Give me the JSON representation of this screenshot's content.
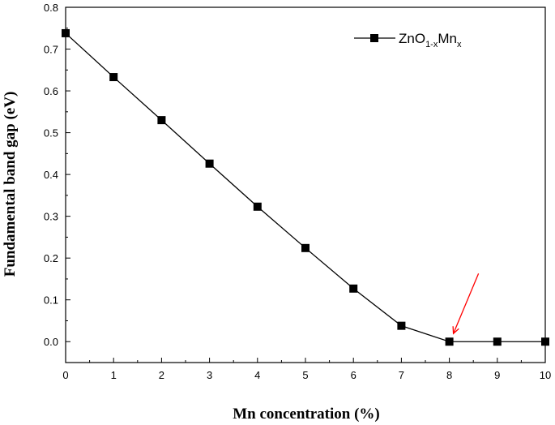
{
  "chart_data": {
    "type": "line",
    "title": "",
    "xlabel": "Mn concentration (%)",
    "ylabel": "Fundamental band gap (eV)",
    "xlim": [
      0,
      10
    ],
    "ylim": [
      -0.05,
      0.8
    ],
    "xticks": [
      0,
      1,
      2,
      3,
      4,
      5,
      6,
      7,
      8,
      9,
      10
    ],
    "yticks": [
      0.0,
      0.1,
      0.2,
      0.3,
      0.4,
      0.5,
      0.6,
      0.7,
      0.8
    ],
    "x_tick_labels": [
      "0",
      "1",
      "2",
      "3",
      "4",
      "5",
      "6",
      "7",
      "8",
      "9",
      "10"
    ],
    "y_tick_labels": [
      "0.0",
      "0.1",
      "0.2",
      "0.3",
      "0.4",
      "0.5",
      "0.6",
      "0.7",
      "0.8"
    ],
    "grid": false,
    "legend_position": "top-right",
    "legend": {
      "base": "ZnO",
      "sub1": "1-x",
      "mid": "Mn",
      "sub2": "x"
    },
    "series": [
      {
        "x": [
          0,
          1,
          2,
          3,
          4,
          5,
          6,
          7,
          8,
          9,
          10
        ],
        "values": [
          0.738,
          0.633,
          0.53,
          0.426,
          0.323,
          0.224,
          0.127,
          0.038,
          0.0,
          0.0,
          0.0
        ],
        "marker": "square",
        "color": "#000000"
      }
    ],
    "annotations": [
      {
        "type": "arrow",
        "color": "#ff0000",
        "target_x": 8,
        "target_y": 0.0
      }
    ]
  }
}
